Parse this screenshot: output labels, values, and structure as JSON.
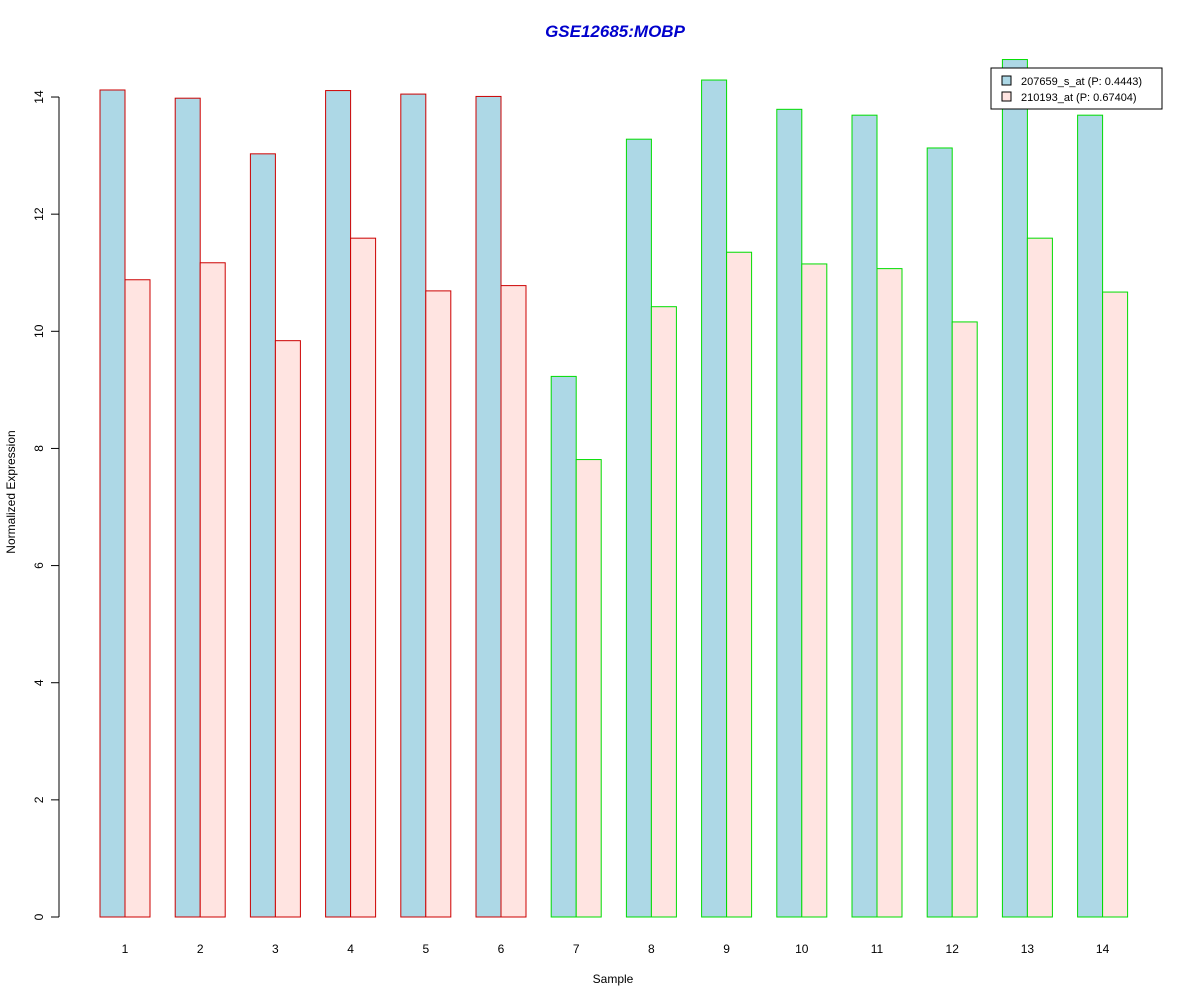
{
  "chart_data": {
    "type": "bar",
    "title": "GSE12685:MOBP",
    "xlabel": "Sample",
    "ylabel": "Normalized Expression",
    "ylim": [
      0,
      14.6
    ],
    "yticks": [
      0,
      2,
      4,
      6,
      8,
      10,
      12,
      14
    ],
    "categories": [
      "1",
      "2",
      "3",
      "4",
      "5",
      "6",
      "7",
      "8",
      "9",
      "10",
      "11",
      "12",
      "13",
      "14"
    ],
    "series": [
      {
        "name": "207659_s_at (P: 0.4443)",
        "fill": "#add8e6",
        "values": [
          14.12,
          13.98,
          13.03,
          14.11,
          14.05,
          14.01,
          9.23,
          13.28,
          14.29,
          13.79,
          13.69,
          13.13,
          14.64,
          13.69
        ]
      },
      {
        "name": "210193_at (P: 0.67404)",
        "fill": "#ffe4e1",
        "values": [
          10.88,
          11.17,
          9.84,
          11.59,
          10.69,
          10.78,
          7.81,
          10.42,
          11.35,
          11.15,
          11.07,
          10.16,
          11.59,
          10.67
        ]
      }
    ],
    "group_border_colors": [
      "#cc0000",
      "#cc0000",
      "#cc0000",
      "#cc0000",
      "#cc0000",
      "#cc0000",
      "#00dd00",
      "#00dd00",
      "#00dd00",
      "#00dd00",
      "#00dd00",
      "#00dd00",
      "#00dd00",
      "#00dd00"
    ],
    "title_color": "#0000cc",
    "legend_position": "top-right",
    "grid": false
  }
}
